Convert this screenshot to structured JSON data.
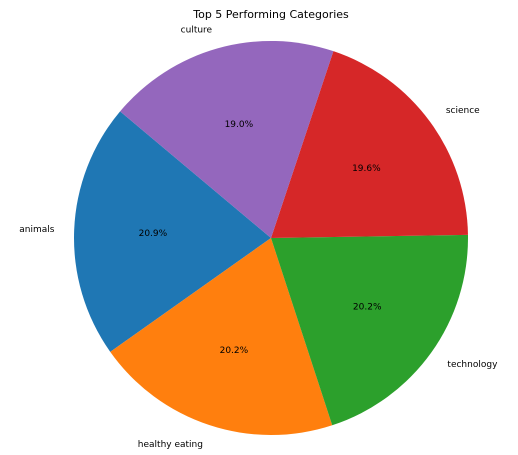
{
  "chart_data": {
    "type": "pie",
    "title": "Top 5 Performing Categories",
    "start_angle_deg": 140,
    "direction": "counterclockwise",
    "slices": [
      {
        "label": "animals",
        "value": 20.9,
        "pct_label": "20.9%",
        "color": "#1f77b4"
      },
      {
        "label": "healthy eating",
        "value": 20.2,
        "pct_label": "20.2%",
        "color": "#ff7f0e"
      },
      {
        "label": "technology",
        "value": 20.2,
        "pct_label": "20.2%",
        "color": "#2ca02c"
      },
      {
        "label": "science",
        "value": 19.6,
        "pct_label": "19.6%",
        "color": "#d62728"
      },
      {
        "label": "culture",
        "value": 19.0,
        "pct_label": "19.0%",
        "color": "#9467bd"
      }
    ]
  }
}
